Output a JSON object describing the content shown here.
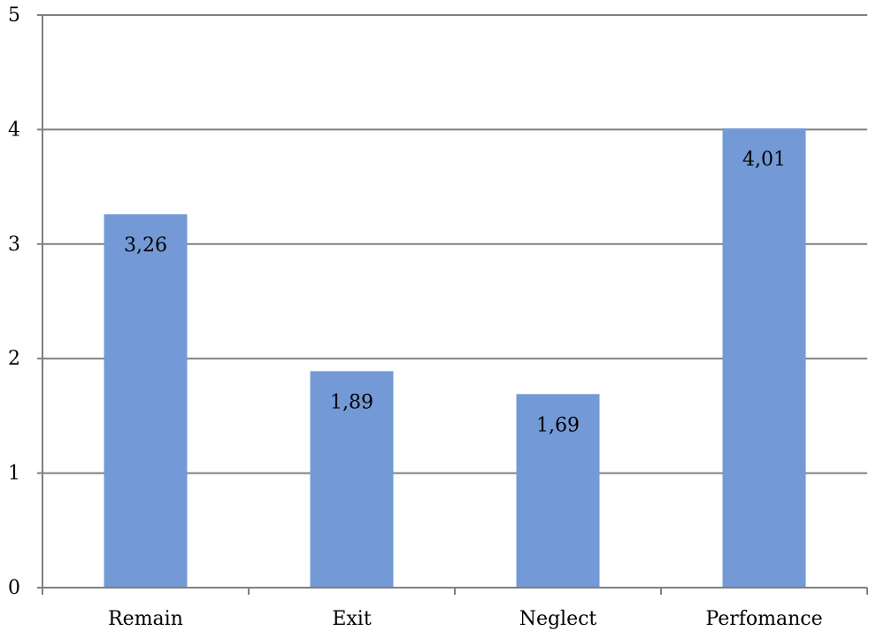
{
  "chart_data": {
    "type": "bar",
    "title": "",
    "xlabel": "",
    "ylabel": "",
    "categories": [
      "Remain",
      "Exit",
      "Neglect",
      "Perfomance"
    ],
    "values": [
      3.26,
      1.89,
      1.69,
      4.01
    ],
    "data_labels": [
      "3,26",
      "1,89",
      "1,69",
      "4,01"
    ],
    "ylim": [
      0,
      5
    ],
    "y_ticks": [
      0,
      1,
      2,
      3,
      4,
      5
    ],
    "y_tick_labels": [
      "0",
      "1",
      "2",
      "3",
      "4",
      "5"
    ],
    "bar_color": "#7399d6",
    "grid": true,
    "legend": "none"
  }
}
